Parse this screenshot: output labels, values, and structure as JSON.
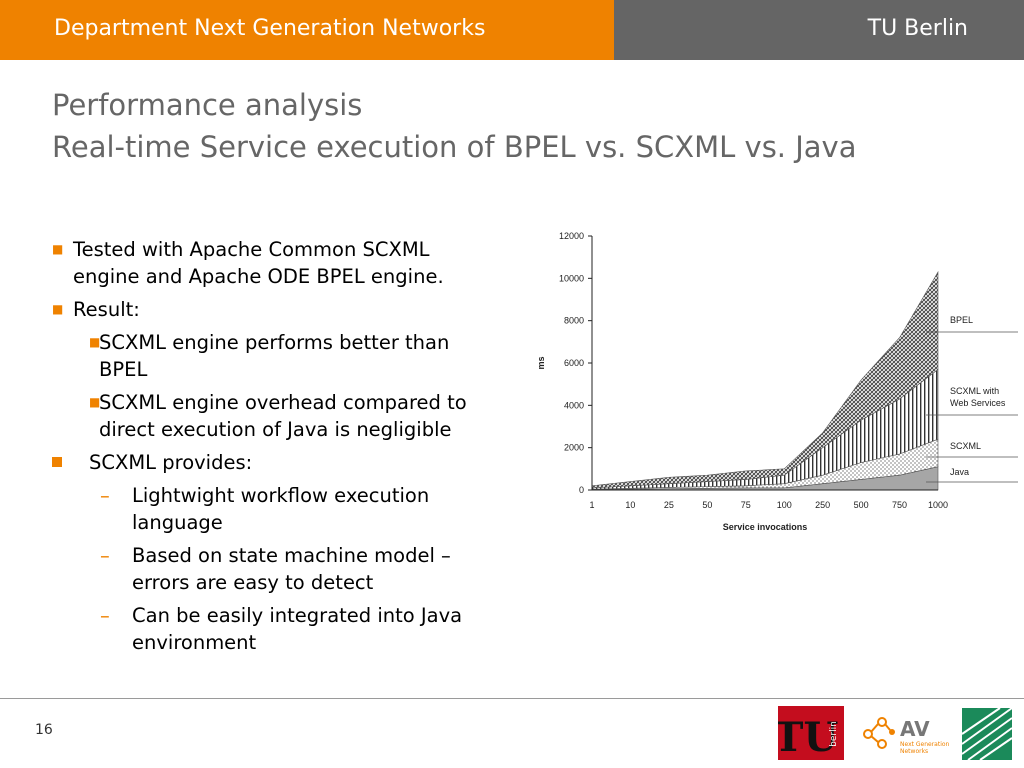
{
  "header": {
    "left": "Department Next Generation Networks",
    "right": "TU Berlin"
  },
  "title": {
    "line1": "Performance analysis",
    "line2": "Real-time Service execution of BPEL vs. SCXML vs. Java"
  },
  "bullets": {
    "b1": "Tested with Apache Common SCXML engine and Apache ODE BPEL engine.",
    "b2": "Result:",
    "b2_sub1": "SCXML engine performs better than BPEL",
    "b2_sub2": "SCXML engine overhead compared to direct execution of Java is negligible",
    "b3": "SCXML provides:",
    "b3_sub1": "Lightwight workflow execution language",
    "b3_sub2": "Based on state machine model – errors are easy to detect",
    "b3_sub3": "Can be easily integrated into Java environment"
  },
  "page_number": "16",
  "logos": {
    "tu_text": "TU",
    "tu_small": "berlin",
    "av_text": "AV",
    "av_sub1": "Next Generation",
    "av_sub2": "Networks"
  },
  "colors": {
    "accent": "#ef8200",
    "header_gray": "#656565",
    "title_gray": "#666666"
  },
  "chart_data": {
    "type": "area",
    "stacked": true,
    "categories": [
      "1",
      "10",
      "25",
      "50",
      "75",
      "100",
      "250",
      "500",
      "750",
      "1000"
    ],
    "series": [
      {
        "name": "Java",
        "values": [
          20,
          40,
          60,
          80,
          100,
          100,
          300,
          500,
          700,
          1100
        ]
      },
      {
        "name": "SCXML",
        "values": [
          20,
          40,
          60,
          80,
          100,
          200,
          400,
          800,
          1000,
          1300
        ]
      },
      {
        "name": "SCXML with Web Services",
        "values": [
          60,
          120,
          180,
          240,
          300,
          400,
          1300,
          2000,
          2600,
          3300
        ]
      },
      {
        "name": "BPEL",
        "values": [
          100,
          200,
          300,
          300,
          400,
          300,
          700,
          1900,
          2900,
          4600
        ]
      }
    ],
    "xlabel": "Service invocations",
    "ylabel": "ms",
    "ylim": [
      0,
      12000
    ],
    "yticks": [
      0,
      2000,
      4000,
      6000,
      8000,
      10000,
      12000
    ],
    "legend_placement": "right"
  }
}
